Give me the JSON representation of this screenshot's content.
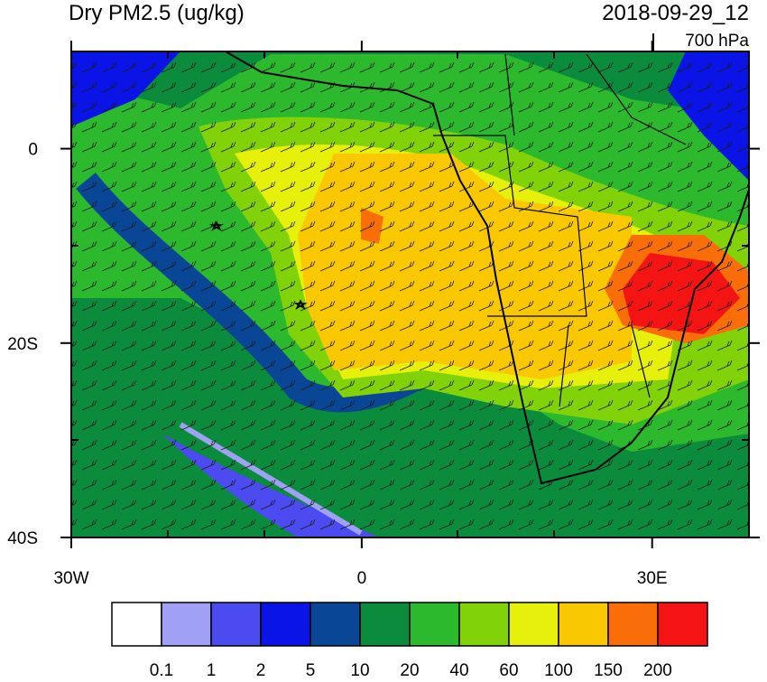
{
  "title": "Dry PM2.5 (ug/kg)",
  "date": "2018-09-29_12",
  "level": "700 hPa",
  "map": {
    "lon_range": [
      -30,
      40
    ],
    "lat_range": [
      -40,
      10
    ],
    "x_ticks": [
      {
        "value": -30,
        "label": "30W"
      },
      {
        "value": 0,
        "label": "0"
      },
      {
        "value": 30,
        "label": "30E"
      }
    ],
    "y_ticks": [
      {
        "value": 0,
        "label": "0"
      },
      {
        "value": -20,
        "label": "20S"
      },
      {
        "value": -40,
        "label": "40S"
      }
    ]
  },
  "colorbar": {
    "colors": [
      "#ffffff",
      "#a0a0f5",
      "#4b4bf0",
      "#0a14e6",
      "#0a4696",
      "#0a8c3c",
      "#2db92d",
      "#82d20a",
      "#e6f00a",
      "#fac800",
      "#fa6e0a",
      "#f51414"
    ],
    "labels": [
      "0.1",
      "1",
      "2",
      "5",
      "10",
      "20",
      "40",
      "60",
      "100",
      "150",
      "200"
    ]
  }
}
